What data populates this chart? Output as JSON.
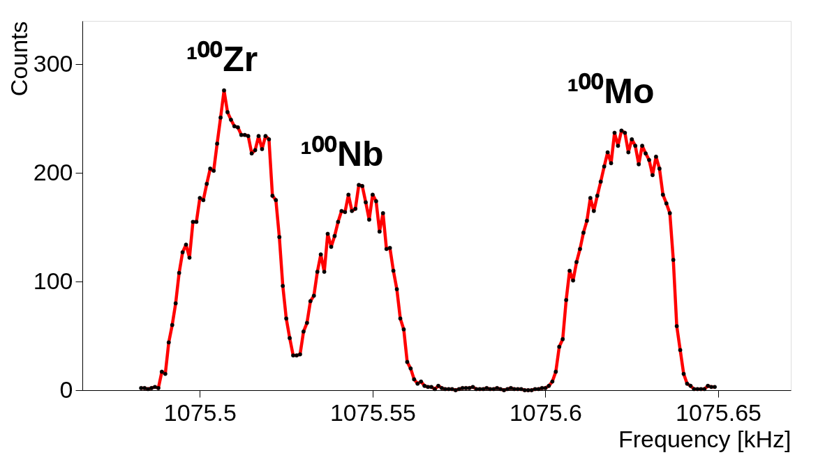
{
  "chart_data": {
    "type": "line",
    "xlabel": "Frequency [kHz]",
    "ylabel": "Counts",
    "x": [
      1075.483,
      1075.484,
      1075.485,
      1075.486,
      1075.487,
      1075.488,
      1075.489,
      1075.49,
      1075.491,
      1075.492,
      1075.493,
      1075.494,
      1075.495,
      1075.496,
      1075.497,
      1075.498,
      1075.499,
      1075.5,
      1075.501,
      1075.502,
      1075.503,
      1075.504,
      1075.505,
      1075.506,
      1075.507,
      1075.508,
      1075.509,
      1075.51,
      1075.511,
      1075.512,
      1075.513,
      1075.514,
      1075.515,
      1075.516,
      1075.517,
      1075.518,
      1075.519,
      1075.52,
      1075.521,
      1075.522,
      1075.523,
      1075.524,
      1075.525,
      1075.526,
      1075.527,
      1075.528,
      1075.529,
      1075.53,
      1075.531,
      1075.532,
      1075.533,
      1075.534,
      1075.535,
      1075.536,
      1075.537,
      1075.538,
      1075.539,
      1075.54,
      1075.541,
      1075.542,
      1075.543,
      1075.544,
      1075.545,
      1075.546,
      1075.547,
      1075.548,
      1075.549,
      1075.55,
      1075.551,
      1075.552,
      1075.553,
      1075.554,
      1075.555,
      1075.556,
      1075.557,
      1075.558,
      1075.559,
      1075.56,
      1075.561,
      1075.562,
      1075.563,
      1075.564,
      1075.565,
      1075.566,
      1075.567,
      1075.568,
      1075.569,
      1075.57,
      1075.571,
      1075.572,
      1075.573,
      1075.574,
      1075.575,
      1075.576,
      1075.577,
      1075.578,
      1075.579,
      1075.58,
      1075.581,
      1075.582,
      1075.583,
      1075.584,
      1075.585,
      1075.586,
      1075.587,
      1075.588,
      1075.589,
      1075.59,
      1075.591,
      1075.592,
      1075.593,
      1075.594,
      1075.595,
      1075.596,
      1075.597,
      1075.598,
      1075.599,
      1075.6,
      1075.601,
      1075.602,
      1075.603,
      1075.604,
      1075.605,
      1075.606,
      1075.607,
      1075.608,
      1075.609,
      1075.61,
      1075.611,
      1075.612,
      1075.613,
      1075.614,
      1075.615,
      1075.616,
      1075.617,
      1075.618,
      1075.619,
      1075.62,
      1075.621,
      1075.622,
      1075.623,
      1075.624,
      1075.625,
      1075.626,
      1075.627,
      1075.628,
      1075.629,
      1075.63,
      1075.631,
      1075.632,
      1075.633,
      1075.634,
      1075.635,
      1075.636,
      1075.637,
      1075.638,
      1075.639,
      1075.64,
      1075.641,
      1075.642,
      1075.643,
      1075.644,
      1075.645,
      1075.646,
      1075.647,
      1075.648,
      1075.649
    ],
    "series": [
      {
        "color": "#ff0000",
        "values": [
          2,
          2,
          1,
          2,
          3,
          2,
          17,
          15,
          44,
          60,
          80,
          108,
          127,
          134,
          122,
          155,
          155,
          177,
          175,
          190,
          204,
          202,
          227,
          251,
          276,
          256,
          249,
          243,
          242,
          235,
          235,
          234,
          218,
          221,
          234,
          222,
          234,
          231,
          179,
          175,
          141,
          96,
          66,
          48,
          32,
          32,
          33,
          54,
          62,
          82,
          87,
          109,
          125,
          109,
          144,
          132,
          142,
          155,
          165,
          164,
          180,
          165,
          167,
          189,
          188,
          173,
          157,
          180,
          174,
          146,
          163,
          130,
          131,
          110,
          93,
          66,
          56,
          26,
          20,
          10,
          6,
          8,
          4,
          3,
          3,
          1,
          4,
          2,
          1,
          1,
          1,
          0,
          1,
          2,
          2,
          2,
          3,
          1,
          1,
          1,
          2,
          1,
          1,
          2,
          1,
          0,
          1,
          2,
          1,
          1,
          1,
          0,
          0,
          0,
          1,
          1,
          2,
          2,
          4,
          8,
          17,
          40,
          47,
          83,
          110,
          101,
          118,
          130,
          145,
          156,
          177,
          165,
          179,
          192,
          206,
          219,
          209,
          237,
          225,
          239,
          237,
          219,
          231,
          225,
          208,
          225,
          218,
          212,
          198,
          215,
          204,
          180,
          172,
          163,
          120,
          59,
          37,
          15,
          6,
          4,
          1,
          1,
          1,
          1,
          4,
          3,
          3
        ]
      }
    ],
    "marker": "circle",
    "line_style": "solid",
    "xlim": [
      1075.466,
      1075.671
    ],
    "ylim": [
      0,
      340
    ],
    "xticks": [
      1075.5,
      1075.55,
      1075.6,
      1075.65
    ],
    "yticks": [
      0,
      100,
      200,
      300
    ],
    "grid": false,
    "annotations": [
      "¹⁰⁰Zr",
      "¹⁰⁰Nb",
      "¹⁰⁰Mo"
    ]
  }
}
